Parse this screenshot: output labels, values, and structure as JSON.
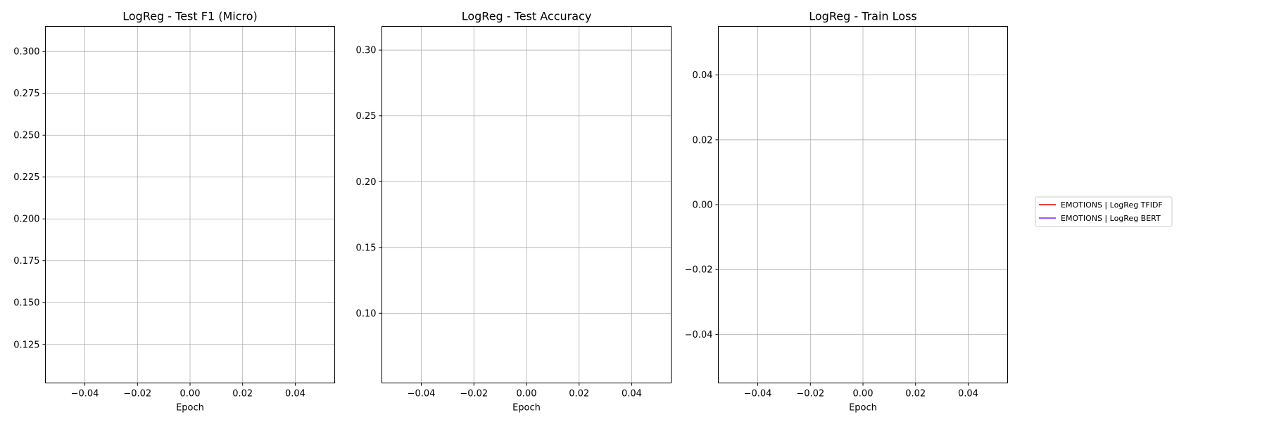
{
  "chart_data": [
    {
      "type": "line",
      "title": "LogReg - Test F1 (Micro)",
      "xlabel": "Epoch",
      "ylabel": "",
      "xlim": [
        -0.055,
        0.055
      ],
      "ylim": [
        0.102,
        0.315
      ],
      "xticks": [
        -0.04,
        -0.02,
        0.0,
        0.02,
        0.04
      ],
      "xtick_labels": [
        "−0.04",
        "−0.02",
        "0.00",
        "0.02",
        "0.04"
      ],
      "yticks": [
        0.125,
        0.15,
        0.175,
        0.2,
        0.225,
        0.25,
        0.275,
        0.3
      ],
      "ytick_labels": [
        "0.125",
        "0.150",
        "0.175",
        "0.200",
        "0.225",
        "0.250",
        "0.275",
        "0.300"
      ],
      "grid": true,
      "series": []
    },
    {
      "type": "line",
      "title": "LogReg - Test Accuracy",
      "xlabel": "Epoch",
      "ylabel": "",
      "xlim": [
        -0.055,
        0.055
      ],
      "ylim": [
        0.047,
        0.318
      ],
      "xticks": [
        -0.04,
        -0.02,
        0.0,
        0.02,
        0.04
      ],
      "xtick_labels": [
        "−0.04",
        "−0.02",
        "0.00",
        "0.02",
        "0.04"
      ],
      "yticks": [
        0.1,
        0.15,
        0.2,
        0.25,
        0.3
      ],
      "ytick_labels": [
        "0.10",
        "0.15",
        "0.20",
        "0.25",
        "0.30"
      ],
      "grid": true,
      "series": []
    },
    {
      "type": "line",
      "title": "LogReg - Train Loss",
      "xlabel": "Epoch",
      "ylabel": "",
      "xlim": [
        -0.055,
        0.055
      ],
      "ylim": [
        -0.055,
        0.055
      ],
      "xticks": [
        -0.04,
        -0.02,
        0.0,
        0.02,
        0.04
      ],
      "xtick_labels": [
        "−0.04",
        "−0.02",
        "0.00",
        "0.02",
        "0.04"
      ],
      "yticks": [
        -0.04,
        -0.02,
        0.0,
        0.02,
        0.04
      ],
      "ytick_labels": [
        "−0.04",
        "−0.02",
        "0.00",
        "0.02",
        "0.04"
      ],
      "grid": true,
      "series": []
    }
  ],
  "legend": {
    "placement": "right",
    "entries": [
      {
        "name": "EMOTIONS | LogReg TFIDF",
        "color": "#e00000"
      },
      {
        "name": "EMOTIONS | LogReg BERT",
        "color": "#7f1fff"
      }
    ]
  },
  "colors": {
    "grid": "#b0b0b0",
    "axes": "#000000"
  }
}
